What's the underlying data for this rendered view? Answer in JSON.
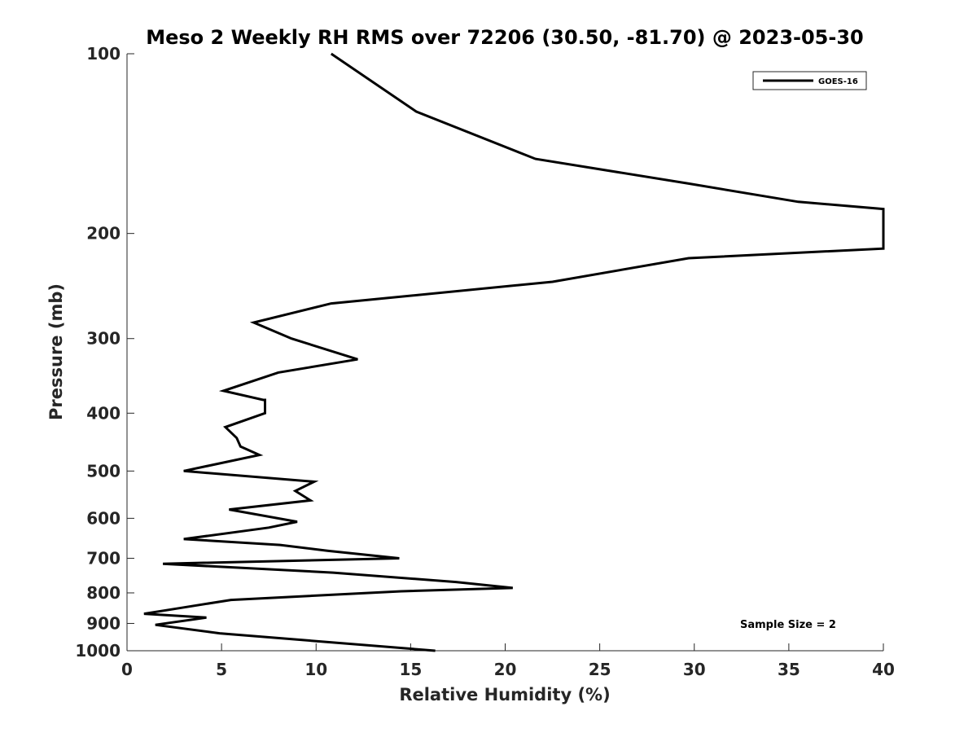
{
  "chart_data": {
    "type": "line",
    "title": "Meso 2 Weekly RH RMS over 72206 (30.50, -81.70) @ 2023-05-30",
    "xlabel": "Relative Humidity (%)",
    "ylabel": "Pressure (mb)",
    "xlim": [
      0,
      40
    ],
    "ylim": [
      100,
      1000
    ],
    "y_scale": "log",
    "y_reversed": true,
    "grid": false,
    "legend_position": "top-right",
    "x_ticks": [
      0,
      5,
      10,
      15,
      20,
      25,
      30,
      35,
      40
    ],
    "x_tick_labels": [
      "0",
      "5",
      "10",
      "15",
      "20",
      "25",
      "30",
      "35",
      "40"
    ],
    "y_ticks": [
      100,
      200,
      300,
      400,
      500,
      600,
      700,
      800,
      900,
      1000
    ],
    "y_tick_labels": [
      "100",
      "200",
      "300",
      "400",
      "500",
      "600",
      "700",
      "800",
      "900",
      "1000"
    ],
    "series": [
      {
        "name": "GOES-16",
        "color": "#000000",
        "points": [
          [
            10.8,
            100
          ],
          [
            15.3,
            125
          ],
          [
            21.6,
            150
          ],
          [
            29.7,
            165
          ],
          [
            35.5,
            177
          ],
          [
            40.0,
            182
          ],
          [
            40.0,
            212
          ],
          [
            29.7,
            220
          ],
          [
            22.5,
            241
          ],
          [
            10.8,
            262
          ],
          [
            6.7,
            282
          ],
          [
            8.7,
            300
          ],
          [
            12.2,
            325
          ],
          [
            8.0,
            342
          ],
          [
            5.1,
            367
          ],
          [
            7.2,
            380
          ],
          [
            7.3,
            380
          ],
          [
            7.3,
            400
          ],
          [
            5.2,
            422
          ],
          [
            5.8,
            440
          ],
          [
            6.0,
            455
          ],
          [
            7.0,
            470
          ],
          [
            3.0,
            500
          ],
          [
            9.9,
            521
          ],
          [
            8.9,
            540
          ],
          [
            9.7,
            560
          ],
          [
            5.4,
            580
          ],
          [
            9.0,
            608
          ],
          [
            7.5,
            622
          ],
          [
            3.0,
            650
          ],
          [
            8.1,
            665
          ],
          [
            10.6,
            680
          ],
          [
            14.4,
            700
          ],
          [
            1.9,
            715
          ],
          [
            10.9,
            740
          ],
          [
            17.4,
            767
          ],
          [
            20.4,
            785
          ],
          [
            14.5,
            795
          ],
          [
            5.5,
            822
          ],
          [
            2.6,
            850
          ],
          [
            0.9,
            867
          ],
          [
            4.2,
            880
          ],
          [
            1.5,
            905
          ],
          [
            4.9,
            935
          ],
          [
            16.3,
            1000
          ]
        ]
      }
    ],
    "annotations": [
      "Sample Size = 2"
    ]
  }
}
